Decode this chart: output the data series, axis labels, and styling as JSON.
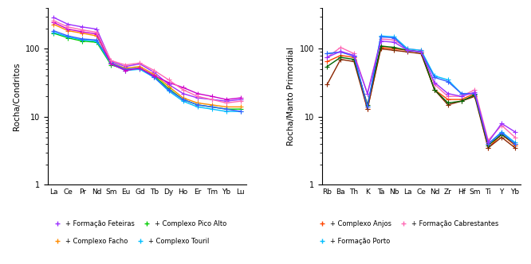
{
  "left_xlabel": [
    "La",
    "Ce",
    "Pr",
    "Nd",
    "Sm",
    "Eu",
    "Gd",
    "Tb",
    "Dy",
    "Ho",
    "Er",
    "Tm",
    "Yb",
    "Lu"
  ],
  "left_ylabel": "Rocha/Condritos",
  "left_ylim": [
    1,
    400
  ],
  "right_xlabel": [
    "Rb",
    "Ba",
    "Th",
    "K",
    "Ta",
    "Nb",
    "La",
    "Ce",
    "Nd",
    "Zr",
    "Hf",
    "Sm",
    "Ti",
    "Y",
    "Yb"
  ],
  "right_ylabel": "Rocha/Manto Primordial",
  "right_ylim": [
    1,
    400
  ],
  "colors_left": [
    "#9B30FF",
    "#00CC00",
    "#FF8C00",
    "#00BFFF",
    "#3060FF",
    "#CC00CC",
    "#FF69B4"
  ],
  "series_left_vals": [
    [
      290,
      230,
      210,
      195,
      65,
      55,
      60,
      45,
      30,
      22,
      19,
      18,
      17,
      18
    ],
    [
      170,
      145,
      130,
      125,
      58,
      50,
      52,
      40,
      26,
      18,
      15,
      14,
      13,
      13
    ],
    [
      230,
      185,
      170,
      155,
      62,
      52,
      55,
      42,
      28,
      19,
      16,
      15,
      14,
      14
    ],
    [
      175,
      150,
      135,
      130,
      60,
      48,
      50,
      38,
      24,
      17,
      14,
      13,
      12,
      12
    ],
    [
      185,
      155,
      140,
      135,
      62,
      50,
      52,
      38,
      25,
      18,
      15,
      14,
      13,
      12
    ],
    [
      245,
      195,
      178,
      165,
      60,
      48,
      52,
      40,
      32,
      27,
      22,
      20,
      18,
      19
    ],
    [
      260,
      210,
      190,
      175,
      67,
      58,
      62,
      48,
      35,
      25,
      20,
      18,
      16,
      17
    ]
  ],
  "colors_right": [
    "#FF4500",
    "#FF69B4",
    "#00BFFF",
    "#8B2500",
    "#006400",
    "#3060FF",
    "#9B30FF"
  ],
  "series_right_vals": [
    [
      65,
      80,
      75,
      13,
      105,
      100,
      95,
      90,
      25,
      18,
      18,
      22,
      3.5,
      5.5,
      3.8
    ],
    [
      75,
      105,
      85,
      22,
      140,
      135,
      100,
      95,
      30,
      20,
      20,
      25,
      4.5,
      7.5,
      5.0
    ],
    [
      85,
      90,
      80,
      14,
      155,
      150,
      100,
      95,
      40,
      35,
      22,
      22,
      4.0,
      6.0,
      4.2
    ],
    [
      30,
      70,
      65,
      13,
      100,
      95,
      90,
      85,
      25,
      15,
      17,
      20,
      3.5,
      5.0,
      3.5
    ],
    [
      55,
      75,
      70,
      15,
      110,
      105,
      95,
      90,
      25,
      16,
      17,
      21,
      3.8,
      5.5,
      4.0
    ],
    [
      85,
      90,
      78,
      14,
      150,
      145,
      95,
      90,
      38,
      33,
      22,
      22,
      4.0,
      5.8,
      4.0
    ],
    [
      75,
      92,
      80,
      22,
      130,
      125,
      95,
      90,
      32,
      22,
      20,
      23,
      4.2,
      8.0,
      6.0
    ]
  ],
  "legend_left": [
    {
      "label": "+ Formação Feteiras",
      "color": "#9B30FF"
    },
    {
      "label": "+ Complexo Pico Alto",
      "color": "#00CC00"
    },
    {
      "label": "+ Complexo Facho",
      "color": "#FF8C00"
    },
    {
      "label": "+ Complexo Touril",
      "color": "#00BFFF"
    }
  ],
  "legend_right": [
    {
      "label": "+ Complexo Anjos",
      "color": "#FF4500"
    },
    {
      "label": "+ Formação Cabrestantes",
      "color": "#FF69B4"
    },
    {
      "label": "+ Formação Porto",
      "color": "#00BFFF"
    }
  ],
  "background_color": "#ffffff",
  "line_width": 1.0,
  "marker_size": 4
}
